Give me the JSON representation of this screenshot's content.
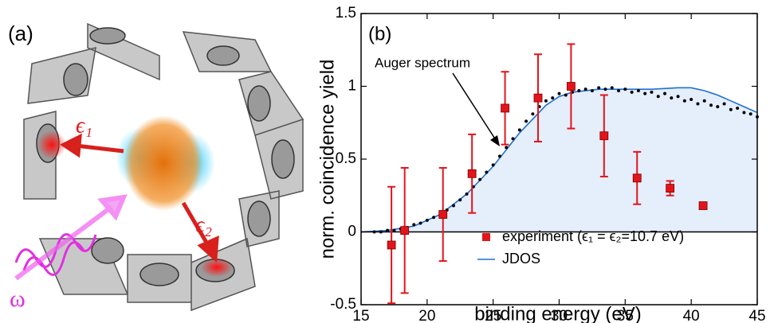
{
  "panel_a": {
    "label": "(a)",
    "annotations": [
      "ϵ₁",
      "ϵ₂",
      "ω"
    ]
  },
  "chart_data": {
    "type": "scatter",
    "panel_label": "(b)",
    "x_label": "binding energy (eV)",
    "y_label": "norm. coincidence yield",
    "xlim": [
      15,
      45
    ],
    "xticks": [
      15,
      20,
      25,
      30,
      35,
      40,
      45
    ],
    "ylim": [
      -0.5,
      1.5
    ],
    "yticks": [
      -0.5,
      0,
      0.5,
      1,
      1.5
    ],
    "legend": "lower right",
    "series": [
      {
        "name": "experiment (ϵ₁ = ϵ₂=10.7 eV)",
        "color": "#e3141b",
        "marker": "square",
        "x": [
          17.3,
          18.3,
          21.2,
          23.4,
          25.9,
          28.4,
          30.9,
          33.4,
          35.9,
          38.4,
          40.9
        ],
        "values": [
          -0.09,
          0.01,
          0.12,
          0.4,
          0.85,
          0.92,
          1.0,
          0.66,
          0.37,
          0.3,
          0.18
        ],
        "errors": [
          0.4,
          0.43,
          0.32,
          0.27,
          0.25,
          0.3,
          0.29,
          0.28,
          0.18,
          0.05,
          null
        ]
      },
      {
        "name": "JDOS",
        "color": "#1f6fd1",
        "line": true,
        "fill": "#e5eefb",
        "x": [
          15,
          17,
          19,
          21,
          23,
          25,
          27,
          29,
          30,
          31,
          33,
          35,
          37,
          39,
          40,
          41,
          42,
          43,
          44,
          45
        ],
        "values": [
          0,
          0.01,
          0.04,
          0.12,
          0.26,
          0.45,
          0.68,
          0.87,
          0.93,
          0.96,
          0.98,
          0.98,
          0.98,
          0.99,
          0.99,
          0.97,
          0.94,
          0.9,
          0.86,
          0.82
        ]
      },
      {
        "name": "Auger spectrum",
        "color": "#000000",
        "marker": "dot",
        "x": [
          16,
          16.5,
          17,
          17.5,
          18,
          18.5,
          19,
          19.5,
          20,
          20.5,
          21,
          21.5,
          22,
          22.5,
          23,
          23.5,
          24,
          24.5,
          25,
          25.5,
          26,
          26.5,
          27,
          27.5,
          28,
          28.5,
          29,
          29.5,
          30,
          30.5,
          31,
          31.5,
          32,
          32.5,
          33,
          33.5,
          34,
          34.5,
          35,
          35.5,
          36,
          36.5,
          37,
          37.5,
          38,
          38.5,
          39,
          39.5,
          40,
          40.5,
          41,
          41.5,
          42,
          42.5,
          43,
          43.5,
          44,
          44.5,
          45
        ],
        "values": [
          0,
          0,
          0.01,
          0.01,
          0.02,
          0.03,
          0.05,
          0.06,
          0.08,
          0.1,
          0.12,
          0.15,
          0.18,
          0.22,
          0.26,
          0.31,
          0.36,
          0.41,
          0.46,
          0.52,
          0.58,
          0.64,
          0.7,
          0.76,
          0.81,
          0.86,
          0.9,
          0.92,
          0.95,
          0.94,
          0.96,
          0.97,
          0.98,
          0.97,
          0.99,
          0.98,
          0.99,
          0.97,
          0.98,
          0.96,
          0.97,
          0.95,
          0.96,
          0.93,
          0.95,
          0.92,
          0.93,
          0.9,
          0.91,
          0.88,
          0.9,
          0.87,
          0.86,
          0.88,
          0.84,
          0.85,
          0.82,
          0.81,
          0.79
        ]
      }
    ]
  }
}
